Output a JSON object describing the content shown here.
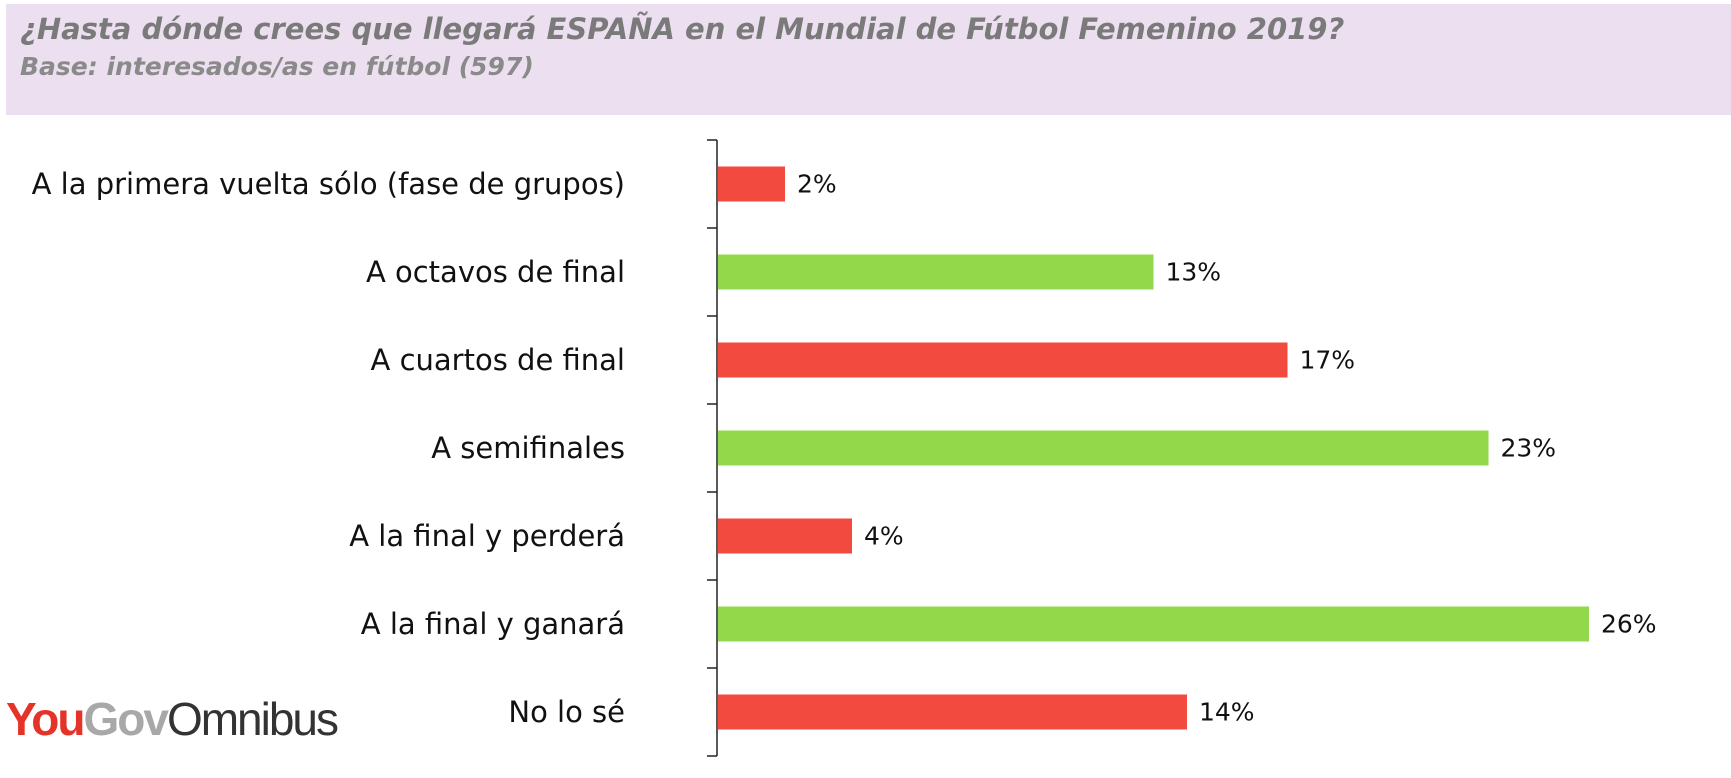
{
  "header": {
    "title": "¿Hasta dónde crees que llegará ESPAÑA en el Mundial de Fútbol Femenino 2019?",
    "subtitle": "Base: interesados/as en fútbol (597)"
  },
  "logo": {
    "part1": "You",
    "part2": "Gov",
    "part3": "Omnibus"
  },
  "colors": {
    "red": "#f24a3f",
    "green": "#93d84a",
    "header_band": "#ecdff0",
    "logo_red": "#e6332a",
    "logo_grey": "#a8a8a8"
  },
  "chart_data": {
    "type": "bar",
    "orientation": "horizontal",
    "categories": [
      "A la primera vuelta sólo (fase de grupos)",
      "A octavos de final",
      "A cuartos de final",
      "A semifinales",
      "A la final y perderá",
      "A la final y ganará",
      "No lo sé"
    ],
    "values": [
      2,
      13,
      17,
      23,
      4,
      26,
      14
    ],
    "value_labels": [
      "2%",
      "13%",
      "17%",
      "23%",
      "4%",
      "26%",
      "14%"
    ],
    "bar_colors": [
      "red",
      "green",
      "red",
      "green",
      "red",
      "green",
      "red"
    ],
    "unit": "%",
    "xlim": [
      0,
      26
    ],
    "grid": false,
    "legend": "none"
  }
}
